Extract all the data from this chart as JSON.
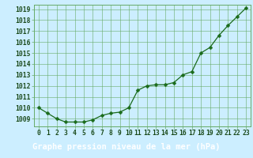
{
  "x": [
    0,
    1,
    2,
    3,
    4,
    5,
    6,
    7,
    8,
    9,
    10,
    11,
    12,
    13,
    14,
    15,
    16,
    17,
    18,
    19,
    20,
    21,
    22,
    23
  ],
  "y": [
    1010.0,
    1009.5,
    1009.0,
    1008.7,
    1008.7,
    1008.7,
    1008.9,
    1009.3,
    1009.5,
    1009.6,
    1010.0,
    1011.6,
    1012.0,
    1012.1,
    1012.1,
    1012.3,
    1013.0,
    1013.3,
    1015.0,
    1015.5,
    1016.6,
    1017.5,
    1018.3,
    1019.1
  ],
  "ylim": [
    1008.3,
    1019.4
  ],
  "yticks": [
    1009,
    1010,
    1011,
    1012,
    1013,
    1014,
    1015,
    1016,
    1017,
    1018,
    1019
  ],
  "xlabel": "Graphe pression niveau de la mer (hPa)",
  "line_color": "#1a6b1a",
  "marker_color": "#1a6b1a",
  "bg_color": "#cceeff",
  "plot_bg": "#cceeff",
  "grid_color": "#66aa66",
  "text_color": "#1a4a1a",
  "label_bg": "#1a5c1a",
  "label_text": "#ffffff",
  "tick_fontsize": 5.8,
  "xlabel_fontsize": 7.5,
  "figsize": [
    3.2,
    2.0
  ],
  "dpi": 100
}
